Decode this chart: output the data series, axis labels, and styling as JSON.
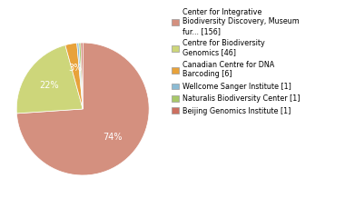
{
  "labels": [
    "Center for Integrative\nBiodiversity Discovery, Museum\nfur... [156]",
    "Centre for Biodiversity\nGenomics [46]",
    "Canadian Centre for DNA\nBarcoding [6]",
    "Wellcome Sanger Institute [1]",
    "Naturalis Biodiversity Center [1]",
    "Beijing Genomics Institute [1]"
  ],
  "values": [
    156,
    46,
    6,
    1,
    1,
    1
  ],
  "colors": [
    "#d4907f",
    "#cdd67a",
    "#e8a23a",
    "#8bbbd4",
    "#a8c86a",
    "#cc7060"
  ],
  "show_pct": [
    true,
    true,
    true,
    false,
    false,
    false
  ],
  "figsize": [
    3.8,
    2.4
  ],
  "dpi": 100,
  "legend_fontsize": 5.8
}
